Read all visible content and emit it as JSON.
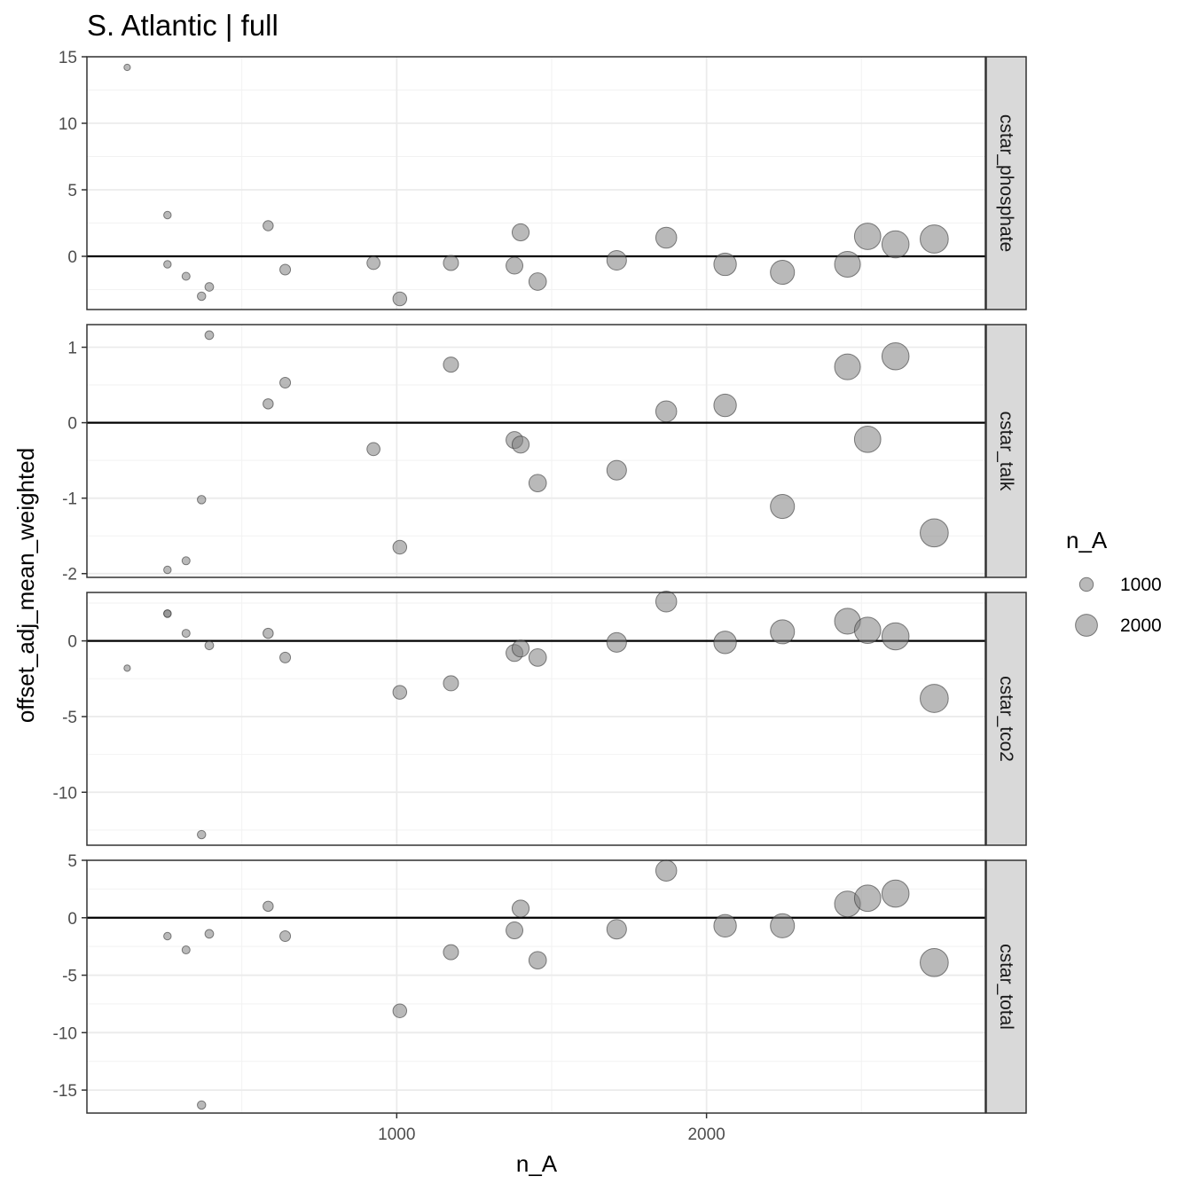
{
  "chart_data": {
    "type": "scatter",
    "title": "S. Atlantic | full",
    "xlabel": "n_A",
    "ylabel": "offset_adj_mean_weighted",
    "x_ticks": [
      1000,
      2000
    ],
    "xlim": [
      0,
      2900
    ],
    "grid": true,
    "reference_line_y": 0,
    "size_variable": "n_A",
    "point_color": "#808080",
    "legend": {
      "title": "n_A",
      "position": "right",
      "entries": [
        {
          "value": 1000,
          "label": "1000"
        },
        {
          "value": 2000,
          "label": "2000"
        }
      ]
    },
    "facets": [
      {
        "label": "cstar_phosphate",
        "ylim": [
          -4,
          15
        ],
        "y_ticks": [
          0,
          5,
          10,
          15
        ],
        "points": [
          {
            "x": 130,
            "y": 14.2
          },
          {
            "x": 260,
            "y": 3.1
          },
          {
            "x": 260,
            "y": -0.6
          },
          {
            "x": 320,
            "y": -1.5
          },
          {
            "x": 370,
            "y": -3.0
          },
          {
            "x": 395,
            "y": -2.3
          },
          {
            "x": 585,
            "y": 2.3
          },
          {
            "x": 640,
            "y": -1.0
          },
          {
            "x": 925,
            "y": -0.5
          },
          {
            "x": 1010,
            "y": -3.2
          },
          {
            "x": 1175,
            "y": -0.5
          },
          {
            "x": 1380,
            "y": -0.7
          },
          {
            "x": 1400,
            "y": 1.8
          },
          {
            "x": 1455,
            "y": -1.9
          },
          {
            "x": 1710,
            "y": -0.3
          },
          {
            "x": 1870,
            "y": 1.4
          },
          {
            "x": 2060,
            "y": -0.6
          },
          {
            "x": 2245,
            "y": -1.2
          },
          {
            "x": 2455,
            "y": -0.6
          },
          {
            "x": 2520,
            "y": 1.5
          },
          {
            "x": 2610,
            "y": 0.9
          },
          {
            "x": 2735,
            "y": 1.3
          }
        ]
      },
      {
        "label": "cstar_talk",
        "ylim": [
          -2.05,
          1.3
        ],
        "y_ticks": [
          -2,
          -1,
          0,
          1
        ],
        "points": [
          {
            "x": 260,
            "y": -1.95
          },
          {
            "x": 320,
            "y": -1.83
          },
          {
            "x": 370,
            "y": -1.02
          },
          {
            "x": 395,
            "y": 1.16
          },
          {
            "x": 585,
            "y": 0.25
          },
          {
            "x": 640,
            "y": 0.53
          },
          {
            "x": 925,
            "y": -0.35
          },
          {
            "x": 1010,
            "y": -1.65
          },
          {
            "x": 1175,
            "y": 0.77
          },
          {
            "x": 1380,
            "y": -0.23
          },
          {
            "x": 1400,
            "y": -0.29
          },
          {
            "x": 1455,
            "y": -0.8
          },
          {
            "x": 1710,
            "y": -0.63
          },
          {
            "x": 1870,
            "y": 0.15
          },
          {
            "x": 2060,
            "y": 0.23
          },
          {
            "x": 2245,
            "y": -1.11
          },
          {
            "x": 2455,
            "y": 0.74
          },
          {
            "x": 2520,
            "y": -0.22
          },
          {
            "x": 2610,
            "y": 0.88
          },
          {
            "x": 2735,
            "y": -1.46
          }
        ]
      },
      {
        "label": "cstar_tco2",
        "ylim": [
          -13.5,
          3.2
        ],
        "y_ticks": [
          -10,
          -5,
          0
        ],
        "points": [
          {
            "x": 130,
            "y": -1.8
          },
          {
            "x": 260,
            "y": 1.8
          },
          {
            "x": 260,
            "y": 1.8
          },
          {
            "x": 320,
            "y": 0.5
          },
          {
            "x": 370,
            "y": -12.8
          },
          {
            "x": 395,
            "y": -0.3
          },
          {
            "x": 585,
            "y": 0.5
          },
          {
            "x": 640,
            "y": -1.1
          },
          {
            "x": 1010,
            "y": -3.4
          },
          {
            "x": 1175,
            "y": -2.8
          },
          {
            "x": 1380,
            "y": -0.8
          },
          {
            "x": 1400,
            "y": -0.5
          },
          {
            "x": 1455,
            "y": -1.1
          },
          {
            "x": 1710,
            "y": -0.1
          },
          {
            "x": 1870,
            "y": 2.6
          },
          {
            "x": 2060,
            "y": -0.1
          },
          {
            "x": 2245,
            "y": 0.6
          },
          {
            "x": 2455,
            "y": 1.3
          },
          {
            "x": 2520,
            "y": 0.7
          },
          {
            "x": 2610,
            "y": 0.3
          },
          {
            "x": 2735,
            "y": -3.8
          }
        ]
      },
      {
        "label": "cstar_total",
        "ylim": [
          -17,
          5
        ],
        "y_ticks": [
          -15,
          -10,
          -5,
          0,
          5
        ],
        "points": [
          {
            "x": 260,
            "y": -1.6
          },
          {
            "x": 320,
            "y": -2.8
          },
          {
            "x": 370,
            "y": -16.3
          },
          {
            "x": 395,
            "y": -1.4
          },
          {
            "x": 585,
            "y": 1.0
          },
          {
            "x": 640,
            "y": -1.6
          },
          {
            "x": 1010,
            "y": -8.1
          },
          {
            "x": 1175,
            "y": -3.0
          },
          {
            "x": 1380,
            "y": -1.1
          },
          {
            "x": 1400,
            "y": 0.8
          },
          {
            "x": 1455,
            "y": -3.7
          },
          {
            "x": 1710,
            "y": -1.0
          },
          {
            "x": 1870,
            "y": 4.1
          },
          {
            "x": 2060,
            "y": -0.7
          },
          {
            "x": 2245,
            "y": -0.7
          },
          {
            "x": 2455,
            "y": 1.2
          },
          {
            "x": 2520,
            "y": 1.7
          },
          {
            "x": 2610,
            "y": 2.1
          },
          {
            "x": 2735,
            "y": -3.9
          }
        ]
      }
    ]
  }
}
